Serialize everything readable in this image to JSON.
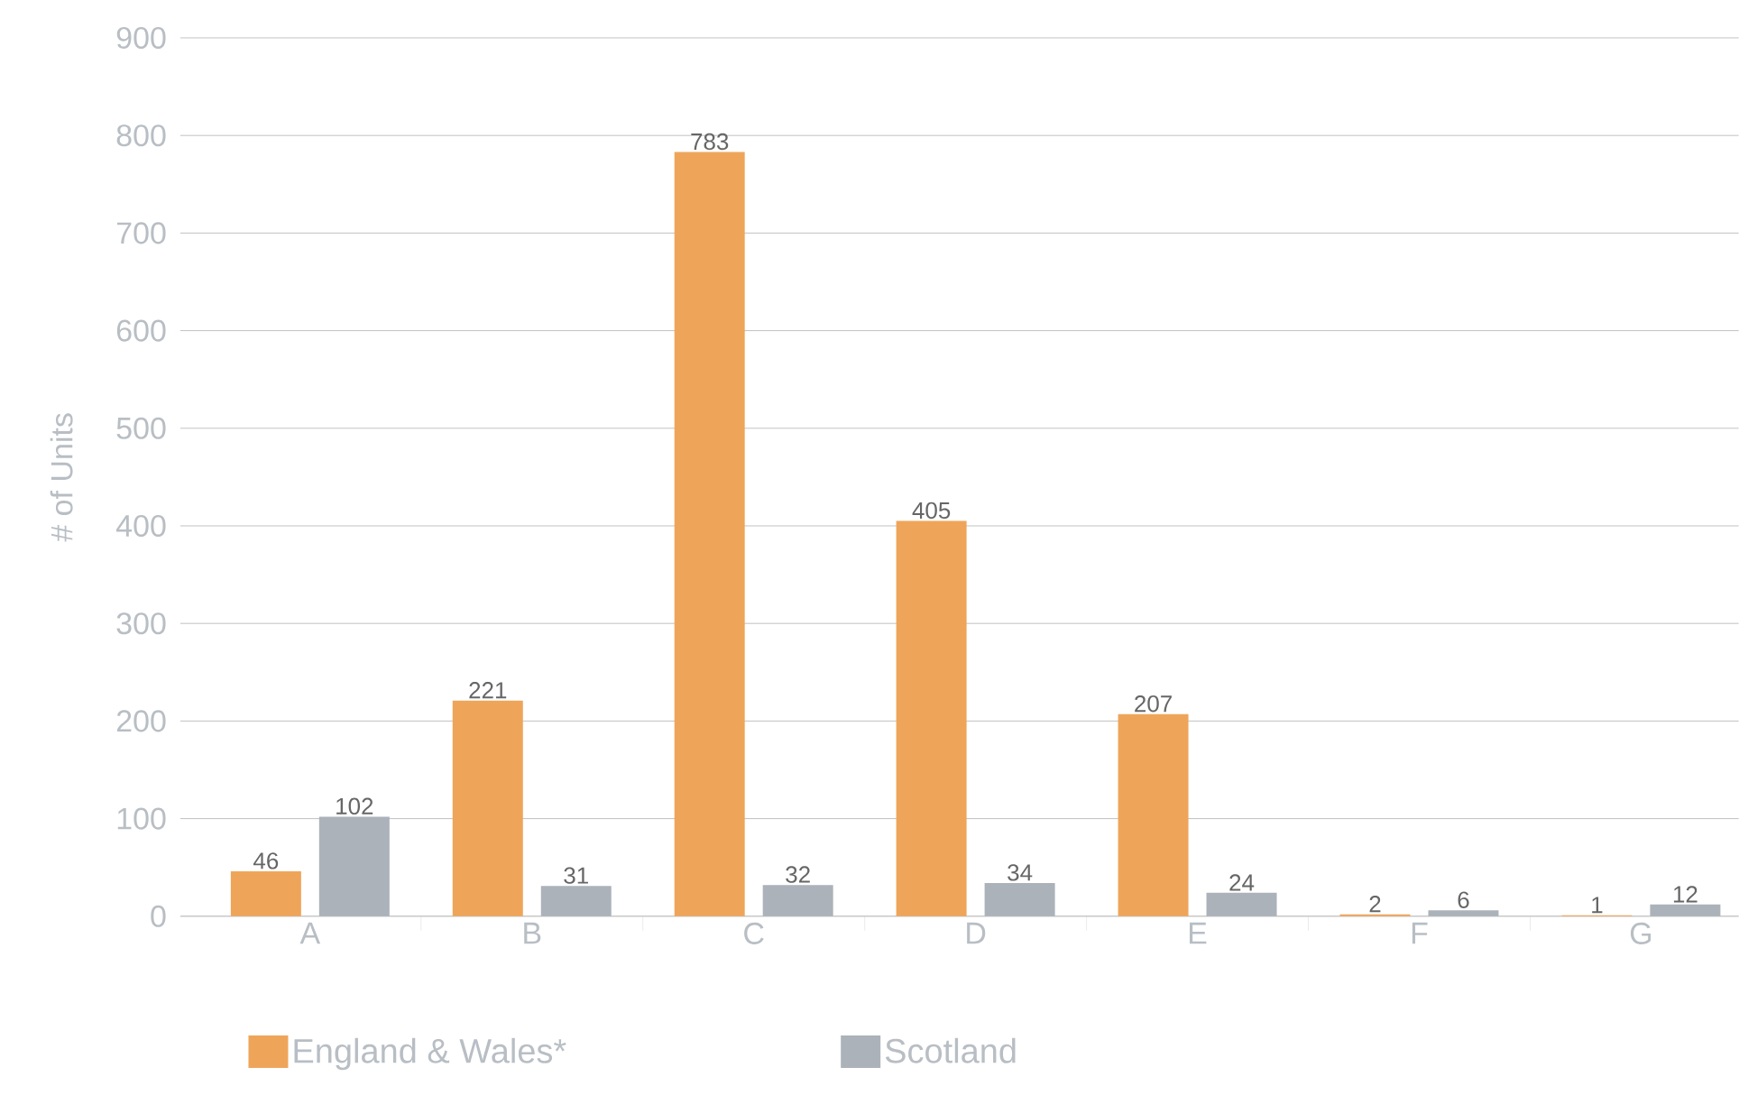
{
  "chart_data": {
    "type": "bar",
    "ylabel": "# of Units",
    "categories": [
      "A",
      "B",
      "C",
      "D",
      "E",
      "F",
      "G"
    ],
    "series": [
      {
        "name": "England & Wales*",
        "color": "#eea55a",
        "values": [
          46,
          221,
          783,
          405,
          207,
          2,
          1
        ]
      },
      {
        "name": "Scotland",
        "color": "#abb2b9",
        "values": [
          102,
          31,
          32,
          34,
          24,
          6,
          12
        ]
      }
    ],
    "ylim": [
      0,
      900
    ],
    "yticks": [
      0,
      100,
      200,
      300,
      400,
      500,
      600,
      700,
      800,
      900
    ],
    "grid": "y",
    "legend": "bottom",
    "data_labels": true
  }
}
